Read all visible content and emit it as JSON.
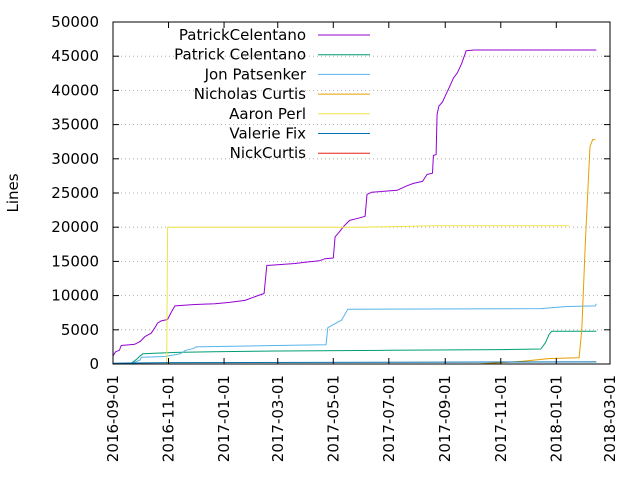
{
  "chart_data": {
    "type": "line",
    "title": "",
    "xlabel": "",
    "ylabel": "Lines",
    "ylim": [
      0,
      50000
    ],
    "xlim": [
      "2016-09-01",
      "2018-03-01"
    ],
    "grid": true,
    "legend_position": "top-left",
    "yticks": [
      0,
      5000,
      10000,
      15000,
      20000,
      25000,
      30000,
      35000,
      40000,
      45000,
      50000
    ],
    "xticks": [
      "2016-09-01",
      "2016-11-01",
      "2017-01-01",
      "2017-03-01",
      "2017-05-01",
      "2017-07-01",
      "2017-09-01",
      "2017-11-01",
      "2018-01-01",
      "2018-03-01"
    ],
    "series": [
      {
        "name": "PatrickCelentano",
        "color": "#9400d3",
        "points": [
          [
            "2016-09-01",
            1200
          ],
          [
            "2016-09-04",
            1800
          ],
          [
            "2016-09-08",
            2000
          ],
          [
            "2016-09-10",
            2700
          ],
          [
            "2016-09-25",
            2900
          ],
          [
            "2016-10-01",
            3300
          ],
          [
            "2016-10-06",
            4000
          ],
          [
            "2016-10-13",
            4500
          ],
          [
            "2016-10-17",
            5300
          ],
          [
            "2016-10-20",
            6000
          ],
          [
            "2016-10-24",
            6300
          ],
          [
            "2016-10-31",
            6500
          ],
          [
            "2016-11-03",
            7300
          ],
          [
            "2016-11-05",
            7800
          ],
          [
            "2016-11-08",
            8500
          ],
          [
            "2016-11-30",
            8700
          ],
          [
            "2016-12-22",
            8800
          ],
          [
            "2017-01-07",
            9000
          ],
          [
            "2017-01-24",
            9300
          ],
          [
            "2017-02-01",
            9700
          ],
          [
            "2017-02-07",
            10000
          ],
          [
            "2017-02-14",
            10300
          ],
          [
            "2017-02-17",
            14400
          ],
          [
            "2017-03-20",
            14700
          ],
          [
            "2017-04-01",
            14900
          ],
          [
            "2017-04-16",
            15100
          ],
          [
            "2017-04-22",
            15400
          ],
          [
            "2017-05-01",
            15500
          ],
          [
            "2017-05-03",
            18600
          ],
          [
            "2017-05-07",
            19200
          ],
          [
            "2017-05-13",
            20200
          ],
          [
            "2017-05-16",
            20600
          ],
          [
            "2017-05-19",
            21000
          ],
          [
            "2017-05-28",
            21300
          ],
          [
            "2017-06-05",
            21600
          ],
          [
            "2017-06-07",
            24800
          ],
          [
            "2017-06-12",
            25100
          ],
          [
            "2017-07-10",
            25400
          ],
          [
            "2017-07-20",
            26000
          ],
          [
            "2017-07-28",
            26400
          ],
          [
            "2017-08-07",
            26700
          ],
          [
            "2017-08-12",
            27700
          ],
          [
            "2017-08-18",
            27900
          ],
          [
            "2017-08-19",
            30500
          ],
          [
            "2017-08-22",
            30600
          ],
          [
            "2017-08-23",
            36500
          ],
          [
            "2017-08-25",
            37700
          ],
          [
            "2017-08-29",
            38300
          ],
          [
            "2017-09-02",
            39500
          ],
          [
            "2017-09-06",
            40600
          ],
          [
            "2017-09-10",
            41800
          ],
          [
            "2017-09-14",
            42500
          ],
          [
            "2017-09-19",
            43900
          ],
          [
            "2017-09-24",
            45800
          ],
          [
            "2017-10-03",
            45900
          ],
          [
            "2018-02-14",
            45900
          ]
        ]
      },
      {
        "name": "Patrick Celentano",
        "color": "#009e73",
        "points": [
          [
            "2016-09-20",
            0
          ],
          [
            "2016-09-27",
            700
          ],
          [
            "2016-10-01",
            1200
          ],
          [
            "2016-10-04",
            1500
          ],
          [
            "2016-10-20",
            1600
          ],
          [
            "2016-11-10",
            1700
          ],
          [
            "2016-12-20",
            1800
          ],
          [
            "2017-03-01",
            1900
          ],
          [
            "2017-07-01",
            2000
          ],
          [
            "2017-11-01",
            2100
          ],
          [
            "2017-12-15",
            2200
          ],
          [
            "2017-12-20",
            3100
          ],
          [
            "2017-12-24",
            4300
          ],
          [
            "2017-12-27",
            4800
          ],
          [
            "2018-02-14",
            4800
          ]
        ]
      },
      {
        "name": "Jon Patsenker",
        "color": "#56b4e9",
        "points": [
          [
            "2016-09-20",
            0
          ],
          [
            "2016-10-01",
            600
          ],
          [
            "2016-10-02",
            1000
          ],
          [
            "2016-10-28",
            1100
          ],
          [
            "2016-11-14",
            1500
          ],
          [
            "2016-11-20",
            2000
          ],
          [
            "2016-11-29",
            2300
          ],
          [
            "2016-12-01",
            2500
          ],
          [
            "2017-02-27",
            2700
          ],
          [
            "2017-04-23",
            2800
          ],
          [
            "2017-04-25",
            5300
          ],
          [
            "2017-05-03",
            5900
          ],
          [
            "2017-05-10",
            6400
          ],
          [
            "2017-05-17",
            8000
          ],
          [
            "2017-12-15",
            8100
          ],
          [
            "2018-01-13",
            8400
          ],
          [
            "2018-02-13",
            8500
          ],
          [
            "2018-02-14",
            8800
          ]
        ]
      },
      {
        "name": "Nicholas Curtis",
        "color": "#e69f00",
        "points": [
          [
            "2017-10-08",
            0
          ],
          [
            "2017-11-25",
            400
          ],
          [
            "2017-12-10",
            600
          ],
          [
            "2017-12-25",
            800
          ],
          [
            "2018-01-26",
            900
          ],
          [
            "2018-01-29",
            5000
          ],
          [
            "2018-02-02",
            18000
          ],
          [
            "2018-02-07",
            31800
          ],
          [
            "2018-02-10",
            32800
          ],
          [
            "2018-02-13",
            32800
          ]
        ]
      },
      {
        "name": "Aaron Perl",
        "color": "#f0e442",
        "points": [
          [
            "2016-10-30",
            0
          ],
          [
            "2016-10-31",
            20000
          ],
          [
            "2017-06-01",
            20000
          ],
          [
            "2017-08-20",
            20200
          ],
          [
            "2018-01-15",
            20200
          ]
        ]
      },
      {
        "name": "Valerie Fix",
        "color": "#0072b2",
        "points": [
          [
            "2016-09-01",
            100
          ],
          [
            "2016-09-20",
            150
          ],
          [
            "2016-11-01",
            200
          ],
          [
            "2018-02-14",
            300
          ]
        ]
      },
      {
        "name": "NickCurtis",
        "color": "#e51e10",
        "points": [
          [
            "2016-09-01",
            0
          ],
          [
            "2018-02-14",
            0
          ]
        ]
      }
    ]
  }
}
